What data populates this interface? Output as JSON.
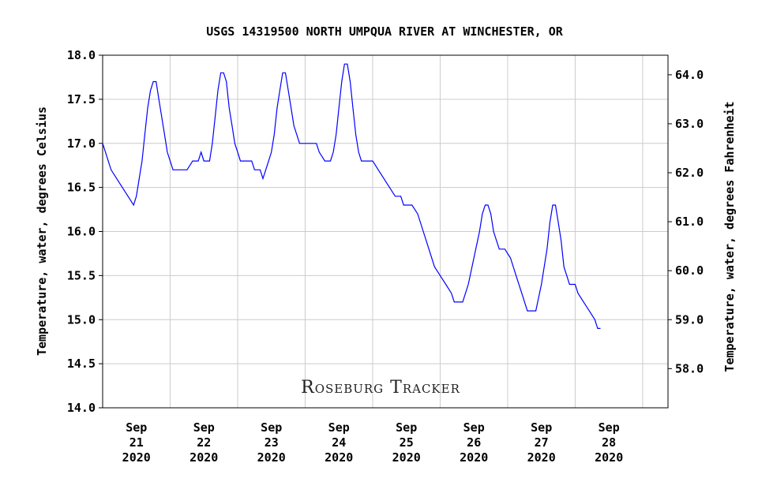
{
  "chart_data": {
    "type": "line",
    "title": "USGS 14319500 NORTH UMPQUA RIVER AT WINCHESTER, OR",
    "ylabel": "Temperature, water, degrees Celsius",
    "y2label": "Temperature, water, degrees Fahrenheit",
    "ylim": [
      14.0,
      18.0
    ],
    "y_ticks": [
      "18.0",
      "17.5",
      "17.0",
      "16.5",
      "16.0",
      "15.5",
      "15.0",
      "14.5",
      "14.0"
    ],
    "y2_ticks": [
      "64.0",
      "63.0",
      "62.0",
      "61.0",
      "60.0",
      "59.0",
      "58.0"
    ],
    "x_ticks": [
      {
        "month": "Sep",
        "day": "21",
        "year": "2020"
      },
      {
        "month": "Sep",
        "day": "22",
        "year": "2020"
      },
      {
        "month": "Sep",
        "day": "23",
        "year": "2020"
      },
      {
        "month": "Sep",
        "day": "24",
        "year": "2020"
      },
      {
        "month": "Sep",
        "day": "25",
        "year": "2020"
      },
      {
        "month": "Sep",
        "day": "26",
        "year": "2020"
      },
      {
        "month": "Sep",
        "day": "27",
        "year": "2020"
      },
      {
        "month": "Sep",
        "day": "28",
        "year": "2020"
      }
    ],
    "xlim": [
      "2020-09-20 00:00",
      "2020-09-28 09:00"
    ],
    "grid": true,
    "line_color": "#0000ff",
    "series": [
      {
        "values": [
          [
            "2020-09-20 00:00",
            17.0
          ],
          [
            "2020-09-20 01:00",
            16.9
          ],
          [
            "2020-09-20 02:00",
            16.8
          ],
          [
            "2020-09-20 03:00",
            16.7
          ],
          [
            "2020-09-20 05:00",
            16.6
          ],
          [
            "2020-09-20 07:00",
            16.5
          ],
          [
            "2020-09-20 09:00",
            16.4
          ],
          [
            "2020-09-20 11:00",
            16.3
          ],
          [
            "2020-09-20 12:00",
            16.4
          ],
          [
            "2020-09-20 13:00",
            16.6
          ],
          [
            "2020-09-20 14:00",
            16.8
          ],
          [
            "2020-09-20 15:00",
            17.1
          ],
          [
            "2020-09-20 16:00",
            17.4
          ],
          [
            "2020-09-20 17:00",
            17.6
          ],
          [
            "2020-09-20 18:00",
            17.7
          ],
          [
            "2020-09-20 19:00",
            17.7
          ],
          [
            "2020-09-20 20:00",
            17.5
          ],
          [
            "2020-09-20 21:00",
            17.3
          ],
          [
            "2020-09-20 22:00",
            17.1
          ],
          [
            "2020-09-20 23:00",
            16.9
          ],
          [
            "2020-09-21 00:00",
            16.8
          ],
          [
            "2020-09-21 01:00",
            16.7
          ],
          [
            "2020-09-21 03:00",
            16.7
          ],
          [
            "2020-09-21 06:00",
            16.7
          ],
          [
            "2020-09-21 08:00",
            16.8
          ],
          [
            "2020-09-21 10:00",
            16.8
          ],
          [
            "2020-09-21 11:00",
            16.9
          ],
          [
            "2020-09-21 12:00",
            16.8
          ],
          [
            "2020-09-21 14:00",
            16.8
          ],
          [
            "2020-09-21 15:00",
            17.0
          ],
          [
            "2020-09-21 16:00",
            17.3
          ],
          [
            "2020-09-21 17:00",
            17.6
          ],
          [
            "2020-09-21 18:00",
            17.8
          ],
          [
            "2020-09-21 19:00",
            17.8
          ],
          [
            "2020-09-21 20:00",
            17.7
          ],
          [
            "2020-09-21 21:00",
            17.4
          ],
          [
            "2020-09-21 22:00",
            17.2
          ],
          [
            "2020-09-21 23:00",
            17.0
          ],
          [
            "2020-09-22 00:00",
            16.9
          ],
          [
            "2020-09-22 01:00",
            16.8
          ],
          [
            "2020-09-22 03:00",
            16.8
          ],
          [
            "2020-09-22 05:00",
            16.8
          ],
          [
            "2020-09-22 06:00",
            16.7
          ],
          [
            "2020-09-22 08:00",
            16.7
          ],
          [
            "2020-09-22 09:00",
            16.6
          ],
          [
            "2020-09-22 10:00",
            16.7
          ],
          [
            "2020-09-22 11:00",
            16.8
          ],
          [
            "2020-09-22 12:00",
            16.9
          ],
          [
            "2020-09-22 13:00",
            17.1
          ],
          [
            "2020-09-22 14:00",
            17.4
          ],
          [
            "2020-09-22 15:00",
            17.6
          ],
          [
            "2020-09-22 16:00",
            17.8
          ],
          [
            "2020-09-22 17:00",
            17.8
          ],
          [
            "2020-09-22 18:00",
            17.6
          ],
          [
            "2020-09-22 19:00",
            17.4
          ],
          [
            "2020-09-22 20:00",
            17.2
          ],
          [
            "2020-09-22 21:00",
            17.1
          ],
          [
            "2020-09-22 22:00",
            17.0
          ],
          [
            "2020-09-23 00:00",
            17.0
          ],
          [
            "2020-09-23 04:00",
            17.0
          ],
          [
            "2020-09-23 05:00",
            16.9
          ],
          [
            "2020-09-23 07:00",
            16.8
          ],
          [
            "2020-09-23 09:00",
            16.8
          ],
          [
            "2020-09-23 10:00",
            16.9
          ],
          [
            "2020-09-23 11:00",
            17.1
          ],
          [
            "2020-09-23 12:00",
            17.4
          ],
          [
            "2020-09-23 13:00",
            17.7
          ],
          [
            "2020-09-23 14:00",
            17.9
          ],
          [
            "2020-09-23 15:00",
            17.9
          ],
          [
            "2020-09-23 16:00",
            17.7
          ],
          [
            "2020-09-23 17:00",
            17.4
          ],
          [
            "2020-09-23 18:00",
            17.1
          ],
          [
            "2020-09-23 19:00",
            16.9
          ],
          [
            "2020-09-23 20:00",
            16.8
          ],
          [
            "2020-09-24 00:00",
            16.8
          ],
          [
            "2020-09-24 02:00",
            16.7
          ],
          [
            "2020-09-24 04:00",
            16.6
          ],
          [
            "2020-09-24 06:00",
            16.5
          ],
          [
            "2020-09-24 08:00",
            16.4
          ],
          [
            "2020-09-24 10:00",
            16.4
          ],
          [
            "2020-09-24 11:00",
            16.3
          ],
          [
            "2020-09-24 14:00",
            16.3
          ],
          [
            "2020-09-24 16:00",
            16.2
          ],
          [
            "2020-09-24 18:00",
            16.0
          ],
          [
            "2020-09-24 20:00",
            15.8
          ],
          [
            "2020-09-24 22:00",
            15.6
          ],
          [
            "2020-09-25 00:00",
            15.5
          ],
          [
            "2020-09-25 02:00",
            15.4
          ],
          [
            "2020-09-25 04:00",
            15.3
          ],
          [
            "2020-09-25 05:00",
            15.2
          ],
          [
            "2020-09-25 08:00",
            15.2
          ],
          [
            "2020-09-25 10:00",
            15.4
          ],
          [
            "2020-09-25 12:00",
            15.7
          ],
          [
            "2020-09-25 14:00",
            16.0
          ],
          [
            "2020-09-25 15:00",
            16.2
          ],
          [
            "2020-09-25 16:00",
            16.3
          ],
          [
            "2020-09-25 17:00",
            16.3
          ],
          [
            "2020-09-25 18:00",
            16.2
          ],
          [
            "2020-09-25 19:00",
            16.0
          ],
          [
            "2020-09-25 20:00",
            15.9
          ],
          [
            "2020-09-25 21:00",
            15.8
          ],
          [
            "2020-09-25 23:00",
            15.8
          ],
          [
            "2020-09-26 01:00",
            15.7
          ],
          [
            "2020-09-26 03:00",
            15.5
          ],
          [
            "2020-09-26 05:00",
            15.3
          ],
          [
            "2020-09-26 07:00",
            15.1
          ],
          [
            "2020-09-26 10:00",
            15.1
          ],
          [
            "2020-09-26 12:00",
            15.4
          ],
          [
            "2020-09-26 14:00",
            15.8
          ],
          [
            "2020-09-26 15:00",
            16.1
          ],
          [
            "2020-09-26 16:00",
            16.3
          ],
          [
            "2020-09-26 17:00",
            16.3
          ],
          [
            "2020-09-26 18:00",
            16.1
          ],
          [
            "2020-09-26 19:00",
            15.9
          ],
          [
            "2020-09-26 20:00",
            15.6
          ],
          [
            "2020-09-26 21:00",
            15.5
          ],
          [
            "2020-09-26 22:00",
            15.4
          ],
          [
            "2020-09-27 00:00",
            15.4
          ],
          [
            "2020-09-27 01:00",
            15.3
          ],
          [
            "2020-09-27 03:00",
            15.2
          ],
          [
            "2020-09-27 05:00",
            15.1
          ],
          [
            "2020-09-27 07:00",
            15.0
          ],
          [
            "2020-09-27 08:00",
            14.9
          ],
          [
            "2020-09-27 09:00",
            14.9
          ]
        ]
      }
    ],
    "annotation": "Roseburg Tracker"
  }
}
